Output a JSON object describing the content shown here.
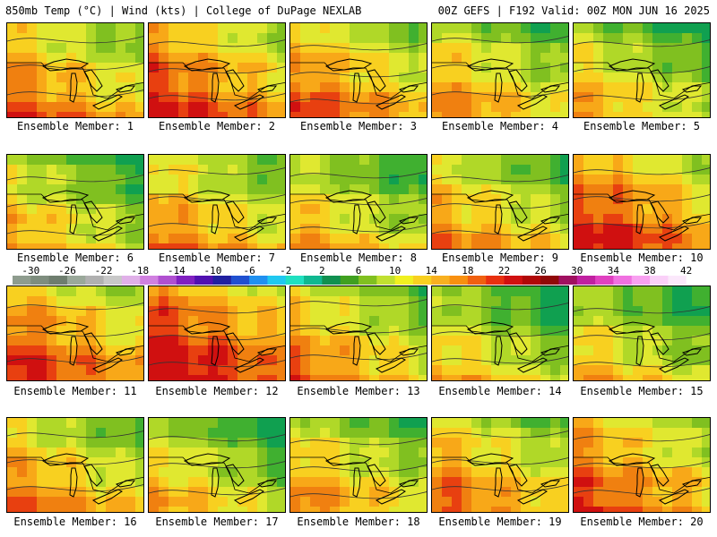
{
  "header": {
    "left": "850mb Temp (°C) | Wind (kts) | College of DuPage NEXLAB",
    "right": "00Z GEFS | F192 Valid: 00Z MON JUN 16 2025"
  },
  "panels": [
    {
      "label": "Ensemble Member: 1",
      "warmth": 0.55
    },
    {
      "label": "Ensemble Member: 2",
      "warmth": 0.7
    },
    {
      "label": "Ensemble Member: 3",
      "warmth": 0.6
    },
    {
      "label": "Ensemble Member: 4",
      "warmth": 0.45
    },
    {
      "label": "Ensemble Member: 5",
      "warmth": 0.35
    },
    {
      "label": "Ensemble Member: 6",
      "warmth": 0.35
    },
    {
      "label": "Ensemble Member: 7",
      "warmth": 0.5
    },
    {
      "label": "Ensemble Member: 8",
      "warmth": 0.35
    },
    {
      "label": "Ensemble Member: 9",
      "warmth": 0.45
    },
    {
      "label": "Ensemble Member: 10",
      "warmth": 0.75
    },
    {
      "label": "Ensemble Member: 11",
      "warmth": 0.7
    },
    {
      "label": "Ensemble Member: 12",
      "warmth": 0.85
    },
    {
      "label": "Ensemble Member: 13",
      "warmth": 0.5
    },
    {
      "label": "Ensemble Member: 14",
      "warmth": 0.3
    },
    {
      "label": "Ensemble Member: 15",
      "warmth": 0.3
    },
    {
      "label": "Ensemble Member: 16",
      "warmth": 0.5
    },
    {
      "label": "Ensemble Member: 17",
      "warmth": 0.35
    },
    {
      "label": "Ensemble Member: 18",
      "warmth": 0.45
    },
    {
      "label": "Ensemble Member: 19",
      "warmth": 0.55
    },
    {
      "label": "Ensemble Member: 20",
      "warmth": 0.65
    }
  ],
  "colorbar": {
    "tick_labels": [
      "-30",
      "-26",
      "-22",
      "-18",
      "-14",
      "-10",
      "-6",
      "-2",
      "2",
      "6",
      "10",
      "14",
      "18",
      "22",
      "26",
      "30",
      "34",
      "38",
      "42"
    ],
    "min": -32,
    "max": 44,
    "step": 2,
    "colors": [
      "#8e9c8e",
      "#7e8d7e",
      "#6e7d6e",
      "#9aa89a",
      "#b0b0b0",
      "#c8c8c8",
      "#e0b0e8",
      "#d080e0",
      "#b050d0",
      "#8020c0",
      "#5010b0",
      "#2020a0",
      "#2050d0",
      "#2090f0",
      "#20c8f0",
      "#20e0c0",
      "#10b890",
      "#109050",
      "#40a020",
      "#80c020",
      "#c0e030",
      "#f0f020",
      "#f8d020",
      "#f8b020",
      "#f89010",
      "#f06010",
      "#e83010",
      "#d01010",
      "#b00808",
      "#900808",
      "#a01060",
      "#c020a0",
      "#e040c0",
      "#f070e0",
      "#f8a0f0",
      "#fad0f8",
      "#fbe8fb",
      "#ffffff"
    ]
  }
}
